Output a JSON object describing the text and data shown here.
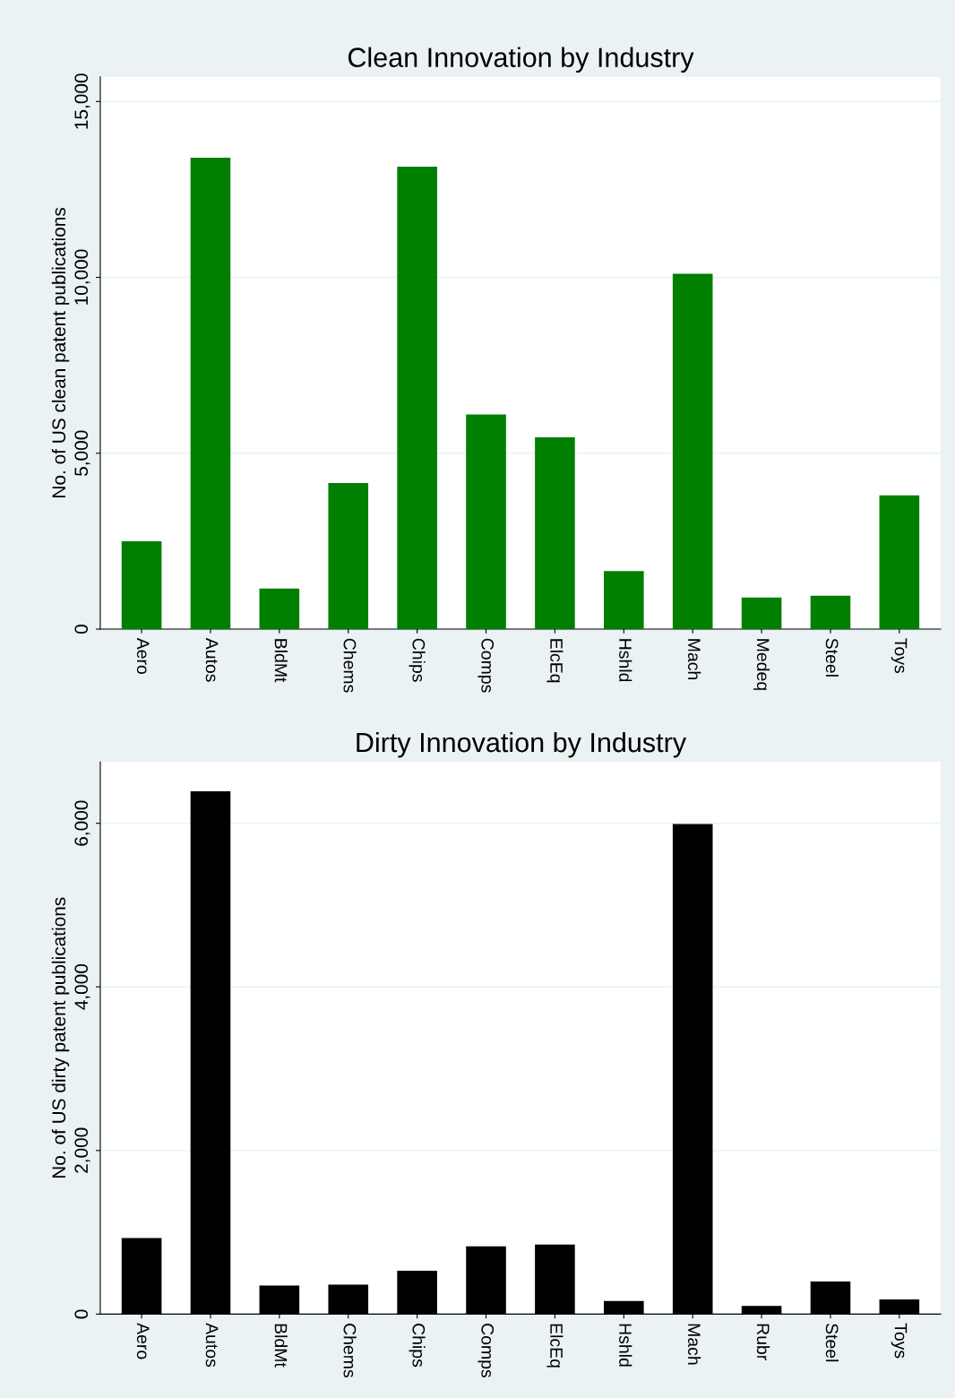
{
  "chart_data": [
    {
      "type": "bar",
      "title": "Clean Innovation by Industry",
      "ylabel": "No. of US clean patent publications",
      "categories": [
        "Aero",
        "Autos",
        "BldMt",
        "Chems",
        "Chips",
        "Comps",
        "ElcEq",
        "Hshld",
        "Mach",
        "Medeq",
        "Steel",
        "Toys"
      ],
      "series": [
        {
          "color": "#007f00",
          "values": [
            2500,
            13400,
            1150,
            4150,
            13150,
            6100,
            5450,
            1650,
            10100,
            900,
            950,
            3800
          ]
        }
      ],
      "ylim": [
        0,
        15700
      ],
      "yticks": [
        {
          "value": 0,
          "label": "0"
        },
        {
          "value": 5000,
          "label": "5,000"
        },
        {
          "value": 10000,
          "label": "10,000"
        },
        {
          "value": 15000,
          "label": "15,000"
        }
      ],
      "grid": "y",
      "legend": false
    },
    {
      "type": "bar",
      "title": "Dirty Innovation by Industry",
      "ylabel": "No. of US dirty patent publications",
      "categories": [
        "Aero",
        "Autos",
        "BldMt",
        "Chems",
        "Chips",
        "Comps",
        "ElcEq",
        "Hshld",
        "Mach",
        "Rubr",
        "Steel",
        "Toys"
      ],
      "series": [
        {
          "color": "#000000",
          "values": [
            930,
            6390,
            350,
            360,
            530,
            830,
            850,
            160,
            5990,
            100,
            400,
            180
          ]
        }
      ],
      "ylim": [
        0,
        6750
      ],
      "yticks": [
        {
          "value": 0,
          "label": "0"
        },
        {
          "value": 2000,
          "label": "2,000"
        },
        {
          "value": 4000,
          "label": "4,000"
        },
        {
          "value": 6000,
          "label": "6,000"
        }
      ],
      "grid": "y",
      "legend": false
    }
  ]
}
